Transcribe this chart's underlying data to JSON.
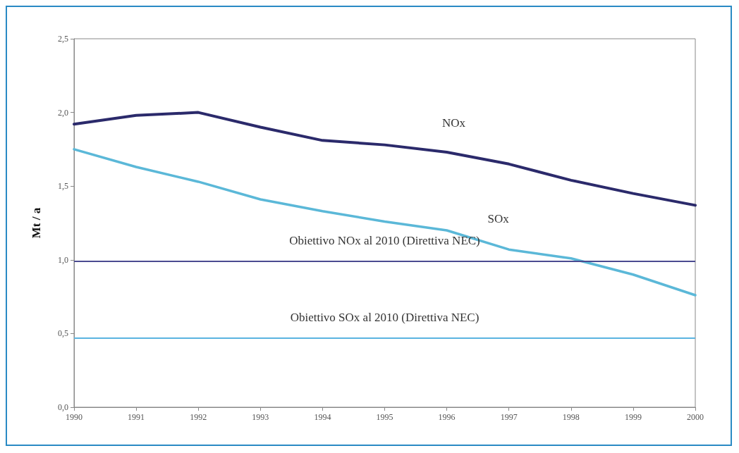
{
  "chart_data": {
    "type": "line",
    "ylabel": "Mt / a",
    "categories": [
      "1990",
      "1991",
      "1992",
      "1993",
      "1994",
      "1995",
      "1996",
      "1997",
      "1998",
      "1999",
      "2000"
    ],
    "series": [
      {
        "name": "NOx",
        "color": "#2b2a6b",
        "values": [
          1.92,
          1.98,
          2.0,
          1.9,
          1.81,
          1.78,
          1.73,
          1.65,
          1.54,
          1.45,
          1.37
        ]
      },
      {
        "name": "SOx",
        "color": "#5bb8d8",
        "values": [
          1.75,
          1.63,
          1.53,
          1.41,
          1.33,
          1.26,
          1.2,
          1.07,
          1.01,
          0.9,
          0.76
        ]
      }
    ],
    "ylim": [
      0,
      2.5
    ],
    "yticks": [
      {
        "value": 0,
        "label": "0,0"
      },
      {
        "value": 0.5,
        "label": "0,5"
      },
      {
        "value": 1,
        "label": "1,0"
      },
      {
        "value": 1.5,
        "label": "1,5"
      },
      {
        "value": 2,
        "label": "2,0"
      },
      {
        "value": 2.5,
        "label": "2,5"
      }
    ],
    "ref_lines": [
      {
        "axis": "y",
        "value": 0.99,
        "label": "Obiettivo NOx al 2010 (Direttiva NEC)",
        "color": "#4a4a90"
      },
      {
        "axis": "y",
        "value": 0.47,
        "label": "Obiettivo SOx al 2010 (Direttiva NEC)",
        "color": "#5ab4e0"
      }
    ],
    "grid": false,
    "legend": false,
    "marker": "none",
    "line_style": "solid"
  }
}
